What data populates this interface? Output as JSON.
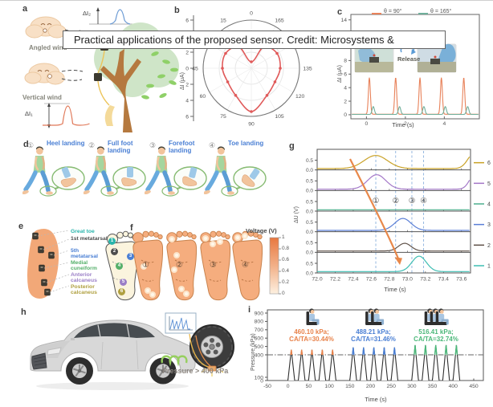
{
  "caption_overlay": {
    "text": "Practical applications of the proposed sensor. Credit: Microsystems & Nanoengineering"
  },
  "panels": {
    "a": {
      "label": "a",
      "angled_wind_label": "Angled wind",
      "vertical_wind_label": "Vertical wind",
      "delta_i1": "ΔI₁",
      "delta_i2": "ΔI₂"
    },
    "b": {
      "label": "b"
    },
    "c": {
      "label": "c",
      "release_label": "Release"
    },
    "d": {
      "label": "d",
      "steps": [
        {
          "num": "①",
          "name": "Heel landing"
        },
        {
          "num": "②",
          "name": "Full foot landing"
        },
        {
          "num": "③",
          "name": "Forefoot landing"
        },
        {
          "num": "④",
          "name": "Toe landing"
        }
      ]
    },
    "e": {
      "label": "e",
      "regions": [
        {
          "name": "Great toe",
          "color": "#2ab5ac",
          "badge": "1",
          "badge_color": "#2ab5ac"
        },
        {
          "name": "1st metatarsal",
          "color": "#4d4d4d",
          "badge": "2",
          "badge_color": "#4d4d4d"
        },
        {
          "name": "5th metatarsal",
          "color": "#4a7fd4",
          "badge": "3",
          "badge_color": "#4a7fd4"
        },
        {
          "name": "Medial cuneiform",
          "color": "#55b06a",
          "badge": "4",
          "badge_color": "#55b06a"
        },
        {
          "name": "Anterior calcaneus",
          "color": "#9b7fc7",
          "badge": "5",
          "badge_color": "#9b7fc7"
        },
        {
          "name": "Posterior calcaneus",
          "color": "#b0a040",
          "badge": "6",
          "badge_color": "#b0a040"
        }
      ]
    },
    "f": {
      "label": "f",
      "foot_nums": [
        "①",
        "②",
        "③",
        "④"
      ],
      "colorbar_title": "Voltage (V)",
      "colorbar_ticks": [
        "1",
        "0.8",
        "0.6",
        "0.4",
        "0.2",
        "0"
      ]
    },
    "g": {
      "label": "g"
    },
    "h": {
      "label": "h",
      "pressure_label": "Pressure > 400 kPa"
    },
    "i": {
      "label": "i"
    }
  },
  "chart_data": [
    {
      "id": "b",
      "type": "line",
      "subtype": "polar",
      "ylabel": "ΔI (μA)",
      "r_max": 6,
      "radial_ticks": [
        "6",
        "4",
        "2",
        "0",
        "2",
        "4",
        "6"
      ],
      "angle_tick_labels": [
        0,
        15,
        45,
        60,
        75,
        90,
        105,
        120,
        135,
        165
      ],
      "series": [
        {
          "name": "ΔI vs wind angle",
          "color": "#e05a5a",
          "theta_deg": [
            0,
            15,
            30,
            45,
            60,
            75,
            90,
            105,
            120,
            135,
            150,
            165
          ],
          "r_uA": [
            0.8,
            3.1,
            3.7,
            3.6,
            3.4,
            3.9,
            5.4,
            3.9,
            3.4,
            3.6,
            3.7,
            3.1
          ]
        }
      ]
    },
    {
      "id": "c",
      "type": "line",
      "xlabel": "Time (s)",
      "ylabel": "ΔI (μA)",
      "xticks": [
        0,
        2,
        4
      ],
      "yticks": [
        0,
        2,
        4,
        6,
        8,
        10,
        12,
        14
      ],
      "xlim": [
        -0.8,
        5.8
      ],
      "ylim": [
        -0.6,
        14.8
      ],
      "legend": [
        {
          "label": "θ = 90°",
          "color": "#e8825a"
        },
        {
          "label": "θ = 165°",
          "color": "#6fae9a"
        }
      ],
      "annotation": "Release",
      "series": [
        {
          "name": "θ = 90°",
          "color": "#e8825a",
          "baseline_uA": 0.08,
          "peak_height_uA": 5.4,
          "peak_sigma_s": 0.05,
          "peak_centers_s": [
            0.15,
            1.5,
            2.75,
            3.85,
            5.0
          ]
        },
        {
          "name": "θ = 165°",
          "color": "#6fae9a",
          "baseline_uA": 0.05,
          "peak_height_uA": 1.15,
          "peak_sigma_s": 0.06,
          "peak_centers_s": [
            0.35,
            1.7,
            2.95,
            4.05,
            5.2
          ]
        }
      ]
    },
    {
      "id": "g",
      "type": "line",
      "subtype": "stacked",
      "xlabel": "Time (s)",
      "ylabel": "ΔU (V)",
      "xticks": [
        "72.0",
        "72.2",
        "72.4",
        "72.6",
        "72.8",
        "73.0",
        "73.2",
        "73.4",
        "73.6"
      ],
      "xlim": [
        72.0,
        73.7
      ],
      "row_yticks": [
        "0.5",
        "0.0"
      ],
      "row_ylim": [
        0,
        0.9
      ],
      "dashed_x": [
        72.65,
        72.87,
        73.05,
        73.18
      ],
      "phase_markers": [
        "①",
        "②",
        "③",
        "④"
      ],
      "rows": [
        {
          "name": "6",
          "color": "#c9a227",
          "bumps": [
            {
              "c": 72.65,
              "s": 0.13,
              "h": 0.68
            },
            {
              "c": 73.74,
              "s": 0.07,
              "h": 0.8
            }
          ]
        },
        {
          "name": "5",
          "color": "#a478c8",
          "bumps": [
            {
              "c": 72.66,
              "s": 0.1,
              "h": 0.75
            },
            {
              "c": 73.75,
              "s": 0.06,
              "h": 0.8
            }
          ]
        },
        {
          "name": "4",
          "color": "#4caf8e",
          "bumps": []
        },
        {
          "name": "3",
          "color": "#5b7fd6",
          "bumps": [
            {
              "c": 72.95,
              "s": 0.09,
              "h": 0.62
            }
          ]
        },
        {
          "name": "2",
          "color": "#5f5148",
          "bumps": [
            {
              "c": 72.97,
              "s": 0.07,
              "h": 0.4
            }
          ]
        },
        {
          "name": "1",
          "color": "#3dbdb2",
          "bumps": [
            {
              "c": 73.13,
              "s": 0.08,
              "h": 0.8
            }
          ]
        }
      ]
    },
    {
      "id": "i",
      "type": "line",
      "subtype": "spike-train",
      "xlabel": "Time (s)",
      "ylabel": "Pressure (kPa)",
      "xticks": [
        -50,
        0,
        50,
        100,
        150,
        200,
        250,
        300,
        350,
        400,
        450
      ],
      "yticks": [
        0,
        100,
        400,
        500,
        600,
        700,
        800,
        900
      ],
      "axis_note": "y axis compressed below 400 kPa",
      "threshold_kPa": 400,
      "groups": [
        {
          "peak_kPa": 460.1,
          "label_line1": "460.10 kPa;",
          "label_line2": "CA/TA=30.44%",
          "color": "#e8824a",
          "centers_s": [
            8,
            33,
            58,
            83,
            108
          ],
          "persons": 1
        },
        {
          "peak_kPa": 488.21,
          "label_line1": "488.21 kPa;",
          "label_line2": "CA/TA=31.46%",
          "color": "#4a7fd4",
          "centers_s": [
            158,
            183,
            208,
            233,
            258
          ],
          "persons": 2
        },
        {
          "peak_kPa": 516.41,
          "label_line1": "516.41 kPa;",
          "label_line2": "CA/TA=32.74%",
          "color": "#4cb87a",
          "centers_s": [
            308,
            333,
            358,
            383,
            408
          ],
          "persons": 3
        }
      ]
    }
  ]
}
